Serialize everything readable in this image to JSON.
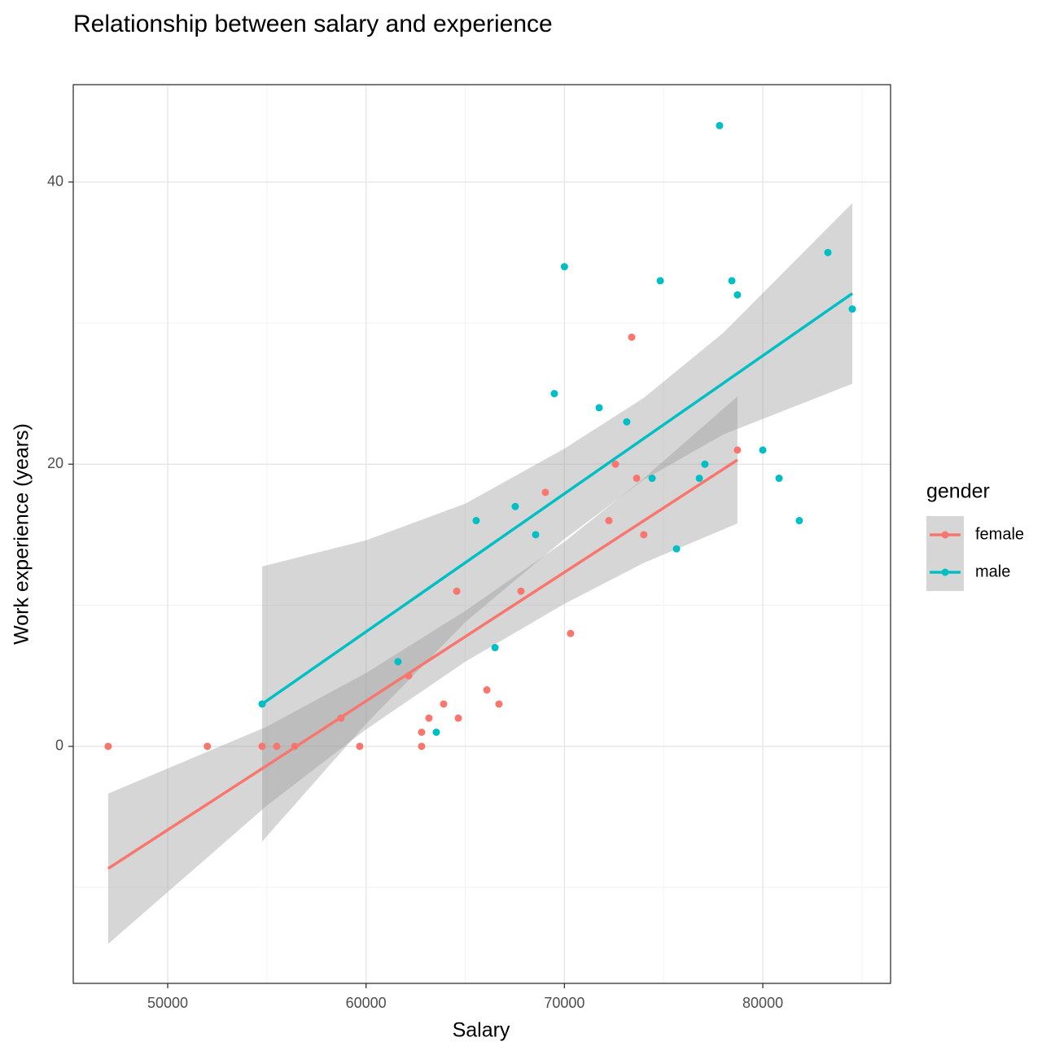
{
  "chart_data": {
    "type": "scatter",
    "title": "Relationship between salary and experience",
    "x_label": "Salary",
    "y_label": "Work experience (years)",
    "xlim": [
      45240,
      86440
    ],
    "ylim": [
      -16.8,
      46.9
    ],
    "xticks": [
      50000,
      60000,
      70000,
      80000
    ],
    "yticks": [
      0,
      20,
      40
    ],
    "x_minor_grid": [
      55000,
      65000,
      75000,
      85000
    ],
    "y_minor_grid": [
      -10,
      10,
      30
    ],
    "grid": true,
    "legend_title": "gender",
    "legend_position": "right",
    "band_color": "#999999",
    "series": [
      {
        "name": "female",
        "color": "#F8766D",
        "x": [
          47000,
          52000,
          54760,
          55500,
          56400,
          58740,
          59680,
          62150,
          62800,
          62800,
          63170,
          63910,
          64570,
          64650,
          66090,
          66700,
          67810,
          69040,
          70310,
          72240,
          72570,
          73390,
          73640,
          74000,
          78720
        ],
        "y": [
          0,
          0,
          0,
          0,
          0,
          2,
          0,
          5,
          1,
          0,
          2,
          3,
          11,
          2,
          4,
          3,
          11,
          18,
          8,
          16,
          20,
          29,
          19,
          15,
          21
        ],
        "fit": {
          "x": [
            47000,
            78720
          ],
          "y": [
            -8.66,
            20.3
          ]
        },
        "band": {
          "x": [
            47000,
            55000,
            60000,
            65000,
            70000,
            74000,
            78720
          ],
          "lower": [
            -14.0,
            -4.2,
            1.2,
            6.0,
            10.1,
            13.0,
            15.8
          ],
          "upper": [
            -3.35,
            1.4,
            5.2,
            9.6,
            14.5,
            19.0,
            24.8
          ]
        }
      },
      {
        "name": "male",
        "color": "#00BFC4",
        "x": [
          54760,
          61610,
          63540,
          65550,
          66500,
          67520,
          68550,
          69490,
          70000,
          71750,
          73140,
          74420,
          74830,
          75650,
          76800,
          77080,
          77820,
          78440,
          78720,
          80000,
          80820,
          81840,
          83280,
          84510
        ],
        "y": [
          3,
          6,
          1,
          16,
          7,
          17,
          15,
          25,
          34,
          24,
          23,
          19,
          33,
          14,
          19,
          20,
          44,
          33,
          32,
          21,
          19,
          16,
          35,
          31
        ],
        "fit": {
          "x": [
            54760,
            84510
          ],
          "y": [
            3,
            32.1
          ]
        },
        "band": {
          "x": [
            54760,
            60000,
            65000,
            70000,
            74000,
            78000,
            84510
          ],
          "lower": [
            -6.75,
            1.6,
            8.8,
            14.7,
            18.9,
            22.1,
            25.7
          ],
          "upper": [
            12.75,
            14.6,
            17.2,
            21.1,
            24.7,
            29.3,
            38.5
          ]
        }
      }
    ]
  }
}
